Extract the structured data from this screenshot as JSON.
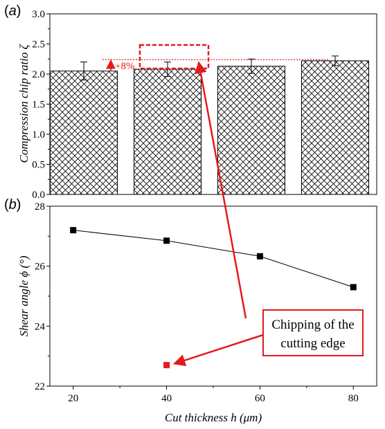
{
  "chart_data": [
    {
      "type": "bar",
      "panel_label": "(a)",
      "panel_letter": "a",
      "categories": [
        20,
        40,
        60,
        80
      ],
      "values": [
        2.05,
        2.08,
        2.13,
        2.22
      ],
      "errors": [
        0.15,
        0.12,
        0.12,
        0.08
      ],
      "ylabel": "Compression chip ratio ζ",
      "ylim": [
        0.0,
        3.0
      ],
      "yticks": [
        "0.0",
        "0.5",
        "1.0",
        "1.5",
        "2.0",
        "2.5",
        "3.0"
      ],
      "bar_pattern": "crosshatch",
      "reference_line": 2.24,
      "annotation": "+8%",
      "annotation_color": "#e41a1c",
      "highlight_category": 40
    },
    {
      "type": "line",
      "panel_label": "(b)",
      "panel_letter": "b",
      "x": [
        20,
        40,
        60,
        80
      ],
      "y": [
        27.2,
        26.85,
        26.33,
        25.3
      ],
      "outlier": {
        "x": 40,
        "y": 22.7,
        "color": "#e41a1c"
      },
      "ylabel": "Shear angle ϕ (°)",
      "xlabel": "Cut thickness h (μm)",
      "xlim": [
        15,
        85
      ],
      "ylim": [
        22,
        28
      ],
      "xticks": [
        "20",
        "40",
        "60",
        "80"
      ],
      "yticks": [
        "22",
        "24",
        "26",
        "28"
      ],
      "callout": [
        "Chipping of the",
        "cutting edge"
      ],
      "callout_color": "#e41a1c"
    }
  ]
}
